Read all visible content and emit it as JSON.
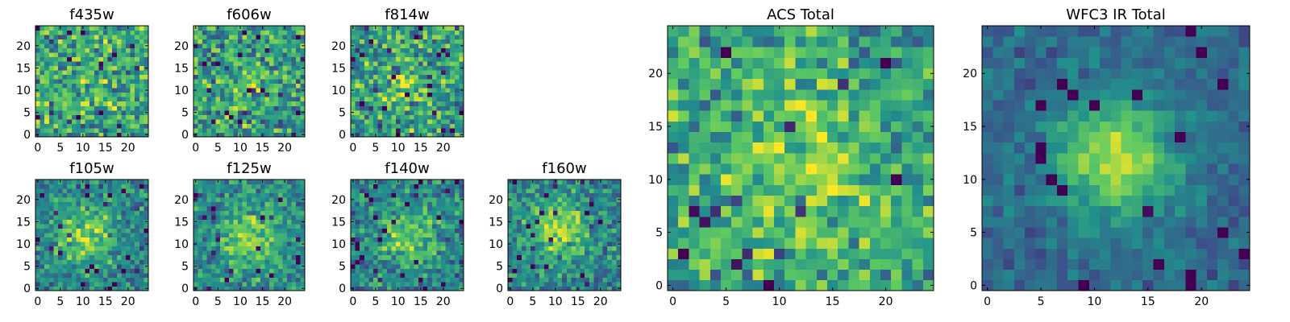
{
  "chart_data": [
    {
      "type": "heatmap",
      "title": "f435w",
      "xlim": [
        0,
        24
      ],
      "ylim": [
        0,
        24
      ],
      "xticks": [
        "0",
        "5",
        "10",
        "15",
        "20"
      ],
      "yticks": [
        "0",
        "5",
        "10",
        "15",
        "20"
      ],
      "size": 25,
      "seed": 11,
      "peak": [
        12,
        12
      ],
      "amplitude": 0.05,
      "sigma": 4,
      "noise": 0.42,
      "base": 0.6
    },
    {
      "type": "heatmap",
      "title": "f606w",
      "xlim": [
        0,
        24
      ],
      "ylim": [
        0,
        24
      ],
      "xticks": [
        "0",
        "5",
        "10",
        "15",
        "20"
      ],
      "yticks": [
        "0",
        "5",
        "10",
        "15",
        "20"
      ],
      "size": 25,
      "seed": 23,
      "peak": [
        12,
        12
      ],
      "amplitude": 0.14,
      "sigma": 4,
      "noise": 0.4,
      "base": 0.56
    },
    {
      "type": "heatmap",
      "title": "f814w",
      "xlim": [
        0,
        24
      ],
      "ylim": [
        0,
        24
      ],
      "xticks": [
        "0",
        "5",
        "10",
        "15",
        "20"
      ],
      "yticks": [
        "0",
        "5",
        "10",
        "15",
        "20"
      ],
      "size": 25,
      "seed": 37,
      "peak": [
        11,
        12
      ],
      "amplitude": 0.2,
      "sigma": 4,
      "noise": 0.42,
      "base": 0.55
    },
    {
      "type": "heatmap",
      "title": "f105w",
      "xlim": [
        0,
        24
      ],
      "ylim": [
        0,
        24
      ],
      "xticks": [
        "0",
        "5",
        "10",
        "15",
        "20"
      ],
      "yticks": [
        "0",
        "5",
        "10",
        "15",
        "20"
      ],
      "size": 25,
      "seed": 41,
      "peak": [
        11,
        12
      ],
      "amplitude": 0.36,
      "sigma": 4.5,
      "noise": 0.3,
      "base": 0.45
    },
    {
      "type": "heatmap",
      "title": "f125w",
      "xlim": [
        0,
        24
      ],
      "ylim": [
        0,
        24
      ],
      "xticks": [
        "0",
        "5",
        "10",
        "15",
        "20"
      ],
      "yticks": [
        "0",
        "5",
        "10",
        "15",
        "20"
      ],
      "size": 25,
      "seed": 53,
      "peak": [
        12,
        11
      ],
      "amplitude": 0.34,
      "sigma": 4.5,
      "noise": 0.3,
      "base": 0.48
    },
    {
      "type": "heatmap",
      "title": "f140w",
      "xlim": [
        0,
        24
      ],
      "ylim": [
        0,
        24
      ],
      "xticks": [
        "0",
        "5",
        "10",
        "15",
        "20"
      ],
      "yticks": [
        "0",
        "5",
        "10",
        "15",
        "20"
      ],
      "size": 25,
      "seed": 67,
      "peak": [
        12,
        12
      ],
      "amplitude": 0.34,
      "sigma": 4.5,
      "noise": 0.3,
      "base": 0.45
    },
    {
      "type": "heatmap",
      "title": "f160w",
      "xlim": [
        0,
        24
      ],
      "ylim": [
        0,
        24
      ],
      "xticks": [
        "0",
        "5",
        "10",
        "15",
        "20"
      ],
      "yticks": [
        "0",
        "5",
        "10",
        "15",
        "20"
      ],
      "size": 25,
      "seed": 79,
      "peak": [
        11,
        13
      ],
      "amplitude": 0.38,
      "sigma": 4.5,
      "noise": 0.3,
      "base": 0.46
    },
    {
      "type": "heatmap",
      "title": "ACS Total",
      "xlim": [
        0,
        24
      ],
      "ylim": [
        0,
        24
      ],
      "xticks": [
        "0",
        "5",
        "10",
        "15",
        "20"
      ],
      "yticks": [
        "0",
        "5",
        "10",
        "15",
        "20"
      ],
      "size": 25,
      "seed": 97,
      "peak": [
        13,
        11
      ],
      "amplitude": 0.22,
      "sigma": 5,
      "noise": 0.36,
      "base": 0.58
    },
    {
      "type": "heatmap",
      "title": "WFC3 IR Total",
      "xlim": [
        0,
        24
      ],
      "ylim": [
        0,
        24
      ],
      "xticks": [
        "0",
        "5",
        "10",
        "15",
        "20"
      ],
      "yticks": [
        "0",
        "5",
        "10",
        "15",
        "20"
      ],
      "size": 25,
      "seed": 131,
      "peak": [
        12,
        12
      ],
      "amplitude": 0.55,
      "sigma": 3.8,
      "noise": 0.16,
      "base": 0.34
    }
  ],
  "colormap": [
    "#440154",
    "#3b528b",
    "#21918c",
    "#5ec962",
    "#fde725"
  ]
}
